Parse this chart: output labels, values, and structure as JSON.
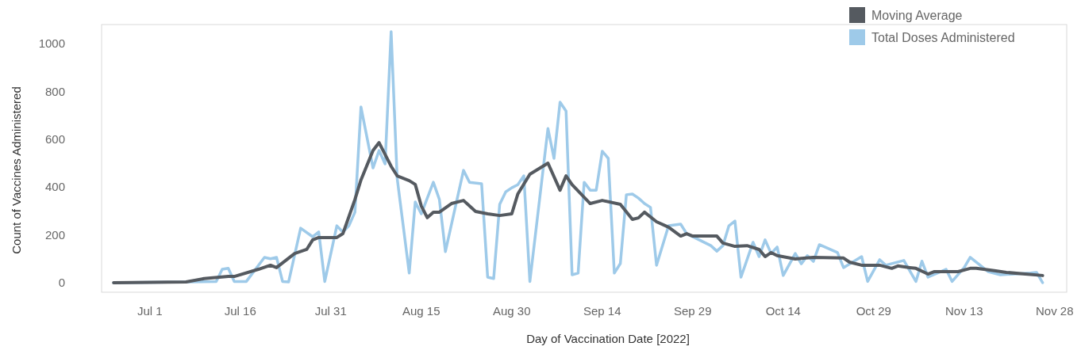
{
  "chart_data": {
    "type": "line",
    "xlabel": "Day of Vaccination Date [2022]",
    "ylabel": "Count of Vaccines Administered",
    "xlim": [
      "2022-06-23",
      "2022-11-30"
    ],
    "ylim": [
      -40,
      1080
    ],
    "xticks": [
      {
        "value": "2022-07-01",
        "label": "Jul 1"
      },
      {
        "value": "2022-07-16",
        "label": "Jul 16"
      },
      {
        "value": "2022-07-31",
        "label": "Jul 31"
      },
      {
        "value": "2022-08-15",
        "label": "Aug 15"
      },
      {
        "value": "2022-08-30",
        "label": "Aug 30"
      },
      {
        "value": "2022-09-14",
        "label": "Sep 14"
      },
      {
        "value": "2022-09-29",
        "label": "Sep 29"
      },
      {
        "value": "2022-10-14",
        "label": "Oct 14"
      },
      {
        "value": "2022-10-29",
        "label": "Oct 29"
      },
      {
        "value": "2022-11-13",
        "label": "Nov 13"
      },
      {
        "value": "2022-11-28",
        "label": "Nov 28"
      }
    ],
    "yticks": [
      0,
      200,
      400,
      600,
      800,
      1000
    ],
    "grid": false,
    "legend": "top right",
    "marker": "none",
    "line_style": "solid",
    "series": [
      {
        "name": "Moving Average",
        "color": "#555a60",
        "x": [
          "2022-06-25",
          "2022-07-07",
          "2022-07-10",
          "2022-07-14",
          "2022-07-15",
          "2022-07-19",
          "2022-07-21",
          "2022-07-22",
          "2022-07-25",
          "2022-07-27",
          "2022-07-28",
          "2022-07-29",
          "2022-08-01",
          "2022-08-02",
          "2022-08-04",
          "2022-08-05",
          "2022-08-07",
          "2022-08-08",
          "2022-08-10",
          "2022-08-11",
          "2022-08-13",
          "2022-08-14",
          "2022-08-15",
          "2022-08-16",
          "2022-08-17",
          "2022-08-18",
          "2022-08-20",
          "2022-08-22",
          "2022-08-24",
          "2022-08-26",
          "2022-08-28",
          "2022-08-30",
          "2022-08-31",
          "2022-09-02",
          "2022-09-05",
          "2022-09-07",
          "2022-09-08",
          "2022-09-09",
          "2022-09-12",
          "2022-09-14",
          "2022-09-17",
          "2022-09-19",
          "2022-09-20",
          "2022-09-21",
          "2022-09-23",
          "2022-09-25",
          "2022-09-27",
          "2022-09-28",
          "2022-09-29",
          "2022-10-03",
          "2022-10-04",
          "2022-10-06",
          "2022-10-08",
          "2022-10-10",
          "2022-10-11",
          "2022-10-12",
          "2022-10-13",
          "2022-10-16",
          "2022-10-19",
          "2022-10-24",
          "2022-10-25",
          "2022-10-27",
          "2022-10-30",
          "2022-11-01",
          "2022-11-02",
          "2022-11-04",
          "2022-11-05",
          "2022-11-07",
          "2022-11-08",
          "2022-11-12",
          "2022-11-14",
          "2022-11-15",
          "2022-11-18",
          "2022-11-20",
          "2022-11-26"
        ],
        "values": [
          0,
          3,
          17,
          26,
          26,
          56,
          73,
          63,
          122,
          139,
          179,
          189,
          189,
          205,
          348,
          430,
          553,
          586,
          487,
          447,
          427,
          411,
          321,
          272,
          295,
          295,
          331,
          344,
          298,
          288,
          281,
          288,
          371,
          454,
          500,
          387,
          447,
          410,
          331,
          344,
          328,
          265,
          271,
          295,
          255,
          232,
          195,
          205,
          195,
          195,
          166,
          152,
          155,
          139,
          109,
          126,
          113,
          99,
          106,
          103,
          86,
          73,
          73,
          60,
          70,
          63,
          60,
          36,
          46,
          46,
          60,
          60,
          50,
          43,
          30
        ]
      },
      {
        "name": "Total Doses Administered",
        "color": "#9ecae9",
        "x": [
          "2022-06-25",
          "2022-07-07",
          "2022-07-12",
          "2022-07-13",
          "2022-07-14",
          "2022-07-15",
          "2022-07-17",
          "2022-07-20",
          "2022-07-21",
          "2022-07-22",
          "2022-07-23",
          "2022-07-24",
          "2022-07-26",
          "2022-07-28",
          "2022-07-29",
          "2022-07-30",
          "2022-08-01",
          "2022-08-02",
          "2022-08-03",
          "2022-08-04",
          "2022-08-05",
          "2022-08-07",
          "2022-08-08",
          "2022-08-09",
          "2022-08-10",
          "2022-08-11",
          "2022-08-13",
          "2022-08-14",
          "2022-08-15",
          "2022-08-17",
          "2022-08-18",
          "2022-08-19",
          "2022-08-22",
          "2022-08-23",
          "2022-08-25",
          "2022-08-26",
          "2022-08-27",
          "2022-08-28",
          "2022-08-29",
          "2022-08-30",
          "2022-08-31",
          "2022-09-01",
          "2022-09-02",
          "2022-09-05",
          "2022-09-06",
          "2022-09-07",
          "2022-09-08",
          "2022-09-09",
          "2022-09-10",
          "2022-09-11",
          "2022-09-12",
          "2022-09-13",
          "2022-09-14",
          "2022-09-15",
          "2022-09-16",
          "2022-09-17",
          "2022-09-18",
          "2022-09-19",
          "2022-09-20",
          "2022-09-21",
          "2022-09-22",
          "2022-09-23",
          "2022-09-25",
          "2022-09-27",
          "2022-09-28",
          "2022-10-02",
          "2022-10-03",
          "2022-10-04",
          "2022-10-05",
          "2022-10-06",
          "2022-10-07",
          "2022-10-09",
          "2022-10-10",
          "2022-10-11",
          "2022-10-12",
          "2022-10-13",
          "2022-10-14",
          "2022-10-16",
          "2022-10-17",
          "2022-10-18",
          "2022-10-19",
          "2022-10-20",
          "2022-10-23",
          "2022-10-24",
          "2022-10-27",
          "2022-10-28",
          "2022-10-30",
          "2022-10-31",
          "2022-11-03",
          "2022-11-05",
          "2022-11-06",
          "2022-11-07",
          "2022-11-10",
          "2022-11-11",
          "2022-11-13",
          "2022-11-14",
          "2022-11-17",
          "2022-11-19",
          "2022-11-24",
          "2022-11-25",
          "2022-11-26"
        ],
        "values": [
          0,
          3,
          5,
          56,
          60,
          5,
          5,
          106,
          100,
          106,
          5,
          3,
          228,
          192,
          212,
          5,
          238,
          212,
          238,
          295,
          735,
          480,
          553,
          497,
          1050,
          437,
          40,
          338,
          288,
          420,
          348,
          130,
          470,
          420,
          414,
          23,
          17,
          328,
          380,
          397,
          410,
          447,
          5,
          645,
          520,
          755,
          718,
          33,
          40,
          420,
          387,
          387,
          550,
          520,
          40,
          80,
          368,
          371,
          354,
          331,
          315,
          73,
          238,
          245,
          205,
          155,
          132,
          155,
          238,
          258,
          23,
          169,
          109,
          179,
          122,
          149,
          30,
          122,
          79,
          113,
          89,
          159,
          126,
          63,
          109,
          5,
          96,
          73,
          93,
          5,
          90,
          23,
          56,
          5,
          63,
          106,
          46,
          33,
          40,
          43,
          0
        ]
      }
    ]
  }
}
